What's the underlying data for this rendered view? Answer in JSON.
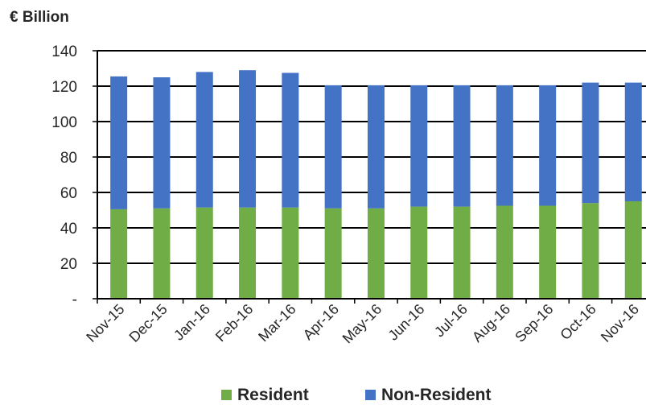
{
  "chart_data": {
    "type": "bar",
    "stacked": true,
    "unit_label": "€ Billion",
    "categories": [
      "Nov-15",
      "Dec-15",
      "Jan-16",
      "Feb-16",
      "Mar-16",
      "Apr-16",
      "May-16",
      "Jun-16",
      "Jul-16",
      "Aug-16",
      "Sep-16",
      "Oct-16",
      "Nov-16"
    ],
    "series": [
      {
        "name": "Resident",
        "color": "#70ad47",
        "values": [
          50.5,
          51,
          51.5,
          51.5,
          51.5,
          51,
          51,
          52,
          52,
          52.5,
          52.5,
          54,
          55
        ]
      },
      {
        "name": "Non-Resident",
        "color": "#4472c4",
        "values": [
          75,
          74,
          76.5,
          77.5,
          76,
          69.5,
          69.5,
          68.5,
          68.5,
          68,
          68,
          68,
          67
        ]
      }
    ],
    "yticks": [
      140,
      120,
      100,
      80,
      60,
      40,
      20,
      0
    ],
    "ytick_labels": [
      "140",
      "120",
      "100",
      "80",
      "60",
      "40",
      "20",
      "-"
    ],
    "ylim": [
      0,
      140
    ],
    "grid": true,
    "legend": "bottom"
  }
}
